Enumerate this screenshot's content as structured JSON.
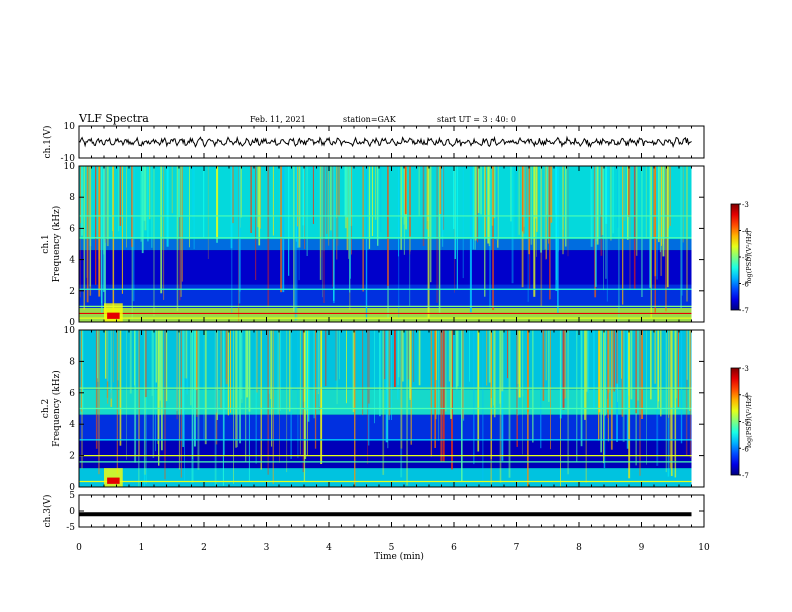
{
  "header": {
    "title": "VLF Spectra",
    "date": "Feb. 11, 2021",
    "station": "station=GAK",
    "start": "start  UT =  3 : 40: 0"
  },
  "chart_data": {
    "type": "heatmap",
    "x_axis": {
      "label": "Time  (min)",
      "range": [
        0,
        10
      ],
      "ticks": [
        "0",
        "1",
        "2",
        "3",
        "4",
        "5",
        "6",
        "7",
        "8",
        "9",
        "10"
      ],
      "data_end": 9.8
    },
    "panels": [
      {
        "name": "ch1-waveform",
        "type": "line",
        "ylabel": "ch.1(V)",
        "yticks": [
          "10",
          "-10"
        ],
        "ylim": [
          -10,
          10
        ],
        "approx_level": 0
      },
      {
        "name": "ch1-spectrogram",
        "type": "heatmap",
        "ylabel_line1": "ch.1",
        "ylabel_line2": "Frequency  (kHz)",
        "yticks": [
          "10",
          "8",
          "6",
          "4",
          "2",
          "0"
        ],
        "ylim": [
          0,
          10
        ],
        "colorbar": {
          "label": "log(PSD)(V²/Hz)",
          "ticks": [
            "-3",
            "-4",
            "-5",
            "-6",
            "-7"
          ],
          "range": [
            -7,
            -3
          ]
        }
      },
      {
        "name": "ch2-spectrogram",
        "type": "heatmap",
        "ylabel_line1": "ch.2",
        "ylabel_line2": "Frequency  (kHz)",
        "yticks": [
          "10",
          "8",
          "6",
          "4",
          "2",
          "0"
        ],
        "ylim": [
          0,
          10
        ],
        "colorbar": {
          "label": "log(PSD)(V²/Hz)",
          "ticks": [
            "-3",
            "-4",
            "-5",
            "-6",
            "-7"
          ],
          "range": [
            -7,
            -3
          ]
        }
      },
      {
        "name": "ch3-waveform",
        "type": "line",
        "ylabel": "ch.3(V)",
        "yticks": [
          "5",
          "0",
          "-5"
        ],
        "ylim": [
          -5,
          5
        ],
        "approx_level": -1
      }
    ]
  }
}
